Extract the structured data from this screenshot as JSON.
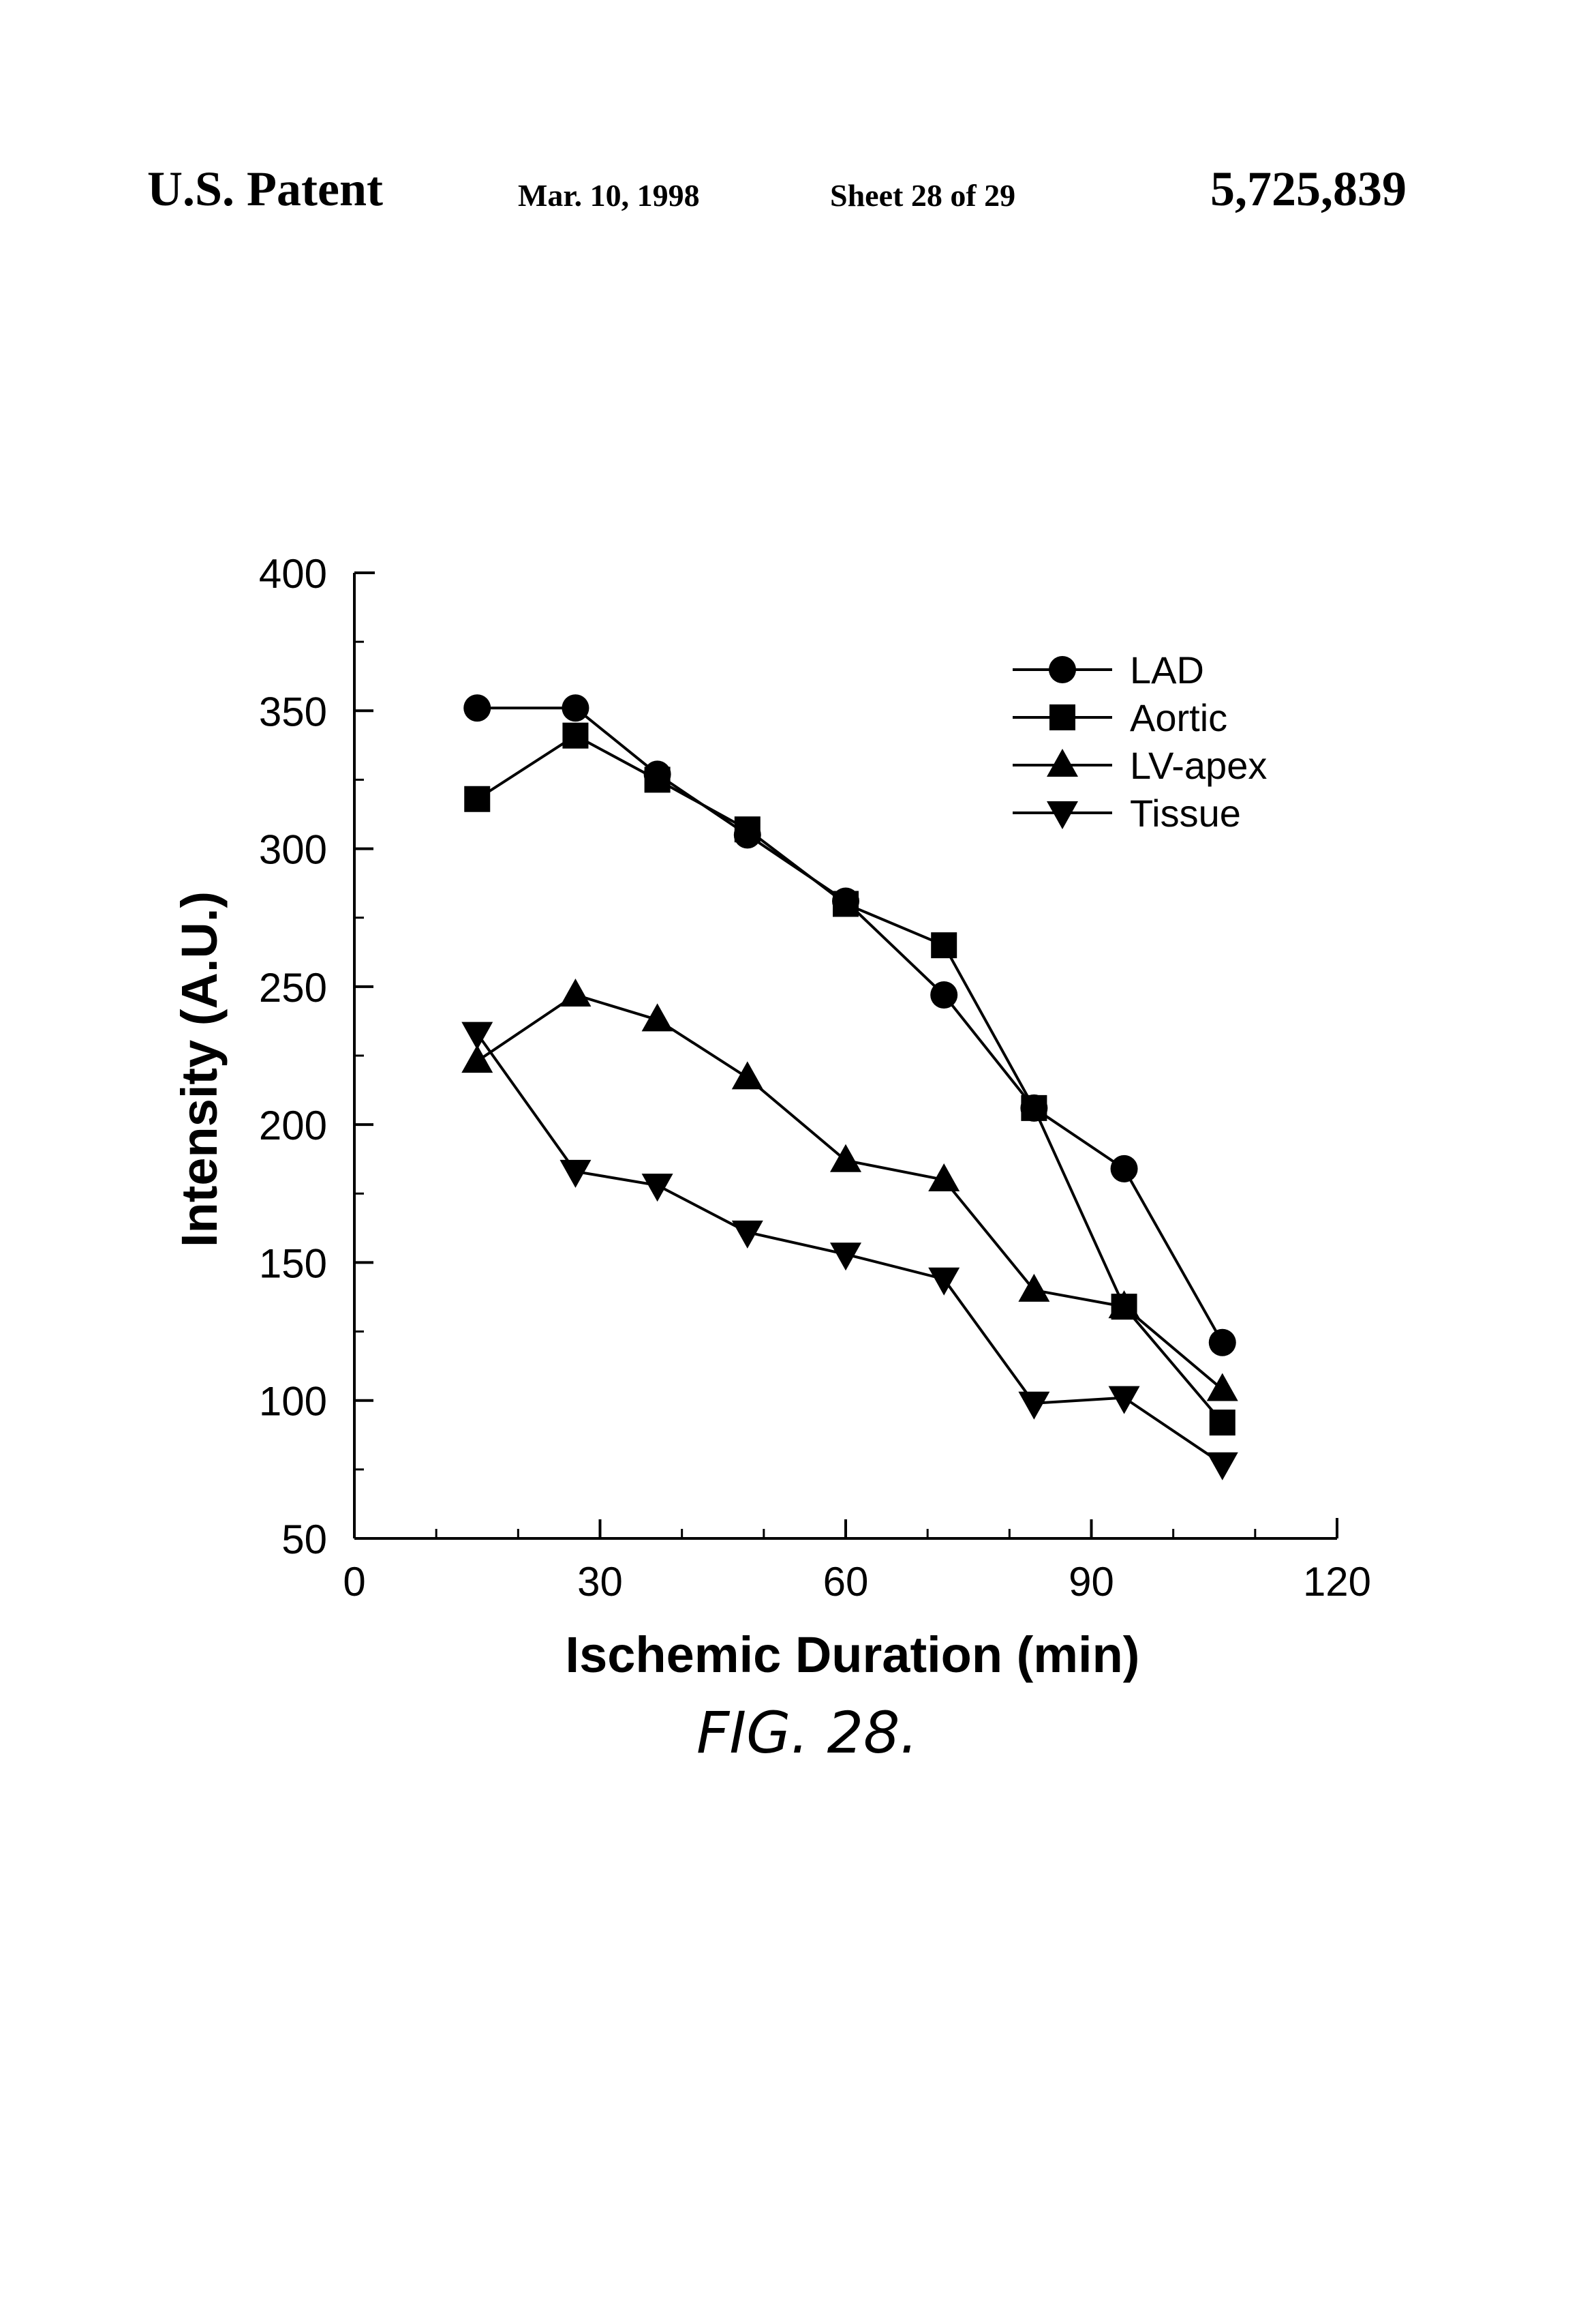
{
  "header": {
    "left": "U.S. Patent",
    "date": "Mar. 10, 1998",
    "sheet": "Sheet 28 of 29",
    "patent_number": "5,725,839"
  },
  "figure_label": "FIG. 28.",
  "chart_data": {
    "type": "line",
    "title": "",
    "xlabel": "Ischemic Duration (min)",
    "ylabel": "Intensity (A.U.)",
    "xlim": [
      0,
      120
    ],
    "ylim": [
      50,
      400
    ],
    "x_ticks": [
      0,
      30,
      60,
      90,
      120
    ],
    "y_ticks": [
      50,
      100,
      150,
      200,
      250,
      300,
      350,
      400
    ],
    "grid": false,
    "legend_position": "top-right",
    "x": [
      15,
      27,
      37,
      48,
      60,
      72,
      83,
      94,
      106
    ],
    "series": [
      {
        "name": "LAD",
        "marker": "circle",
        "values": [
          351,
          351,
          327,
          305,
          281,
          247,
          206,
          184,
          121
        ]
      },
      {
        "name": "Aortic",
        "marker": "square",
        "values": [
          318,
          341,
          325,
          307,
          280,
          265,
          206,
          134,
          92
        ]
      },
      {
        "name": "LV-apex",
        "marker": "triangle-up",
        "values": [
          223,
          247,
          238,
          217,
          187,
          180,
          140,
          134,
          104
        ]
      },
      {
        "name": "Tissue",
        "marker": "triangle-down",
        "values": [
          233,
          183,
          178,
          161,
          153,
          144,
          99,
          101,
          77
        ]
      }
    ]
  }
}
